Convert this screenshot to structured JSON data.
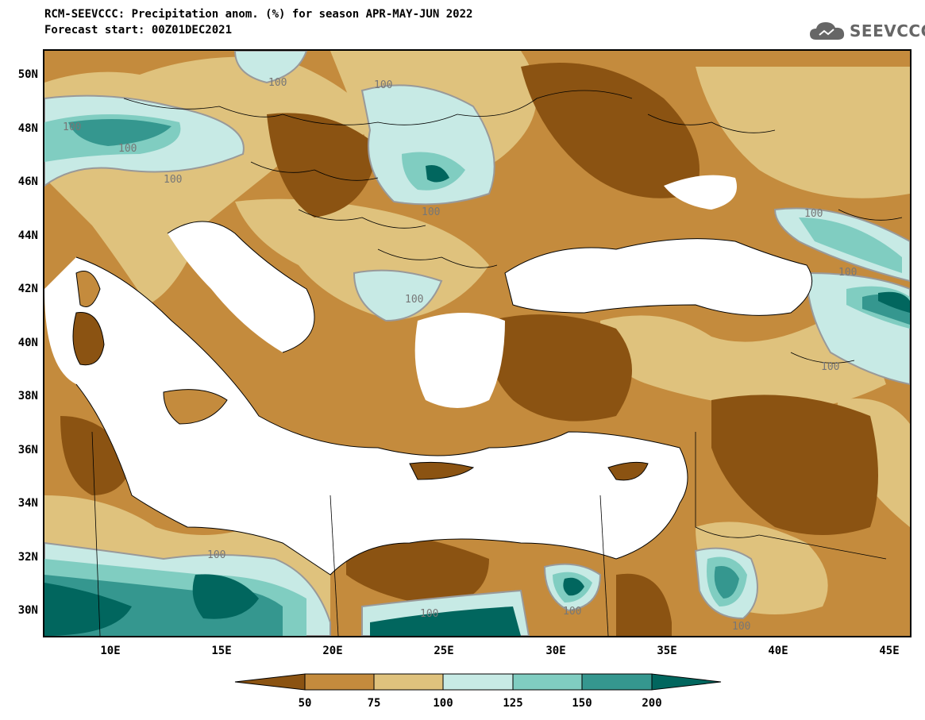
{
  "title": {
    "line1": "RCM-SEEVCCC: Precipitation anom. (%) for season APR-MAY-JUN 2022",
    "line2": "Forecast start: 00Z01DEC2021"
  },
  "logo": {
    "text": "SEEVCCC",
    "icon": "cloud-icon"
  },
  "lat_ticks": [
    "50N",
    "48N",
    "46N",
    "44N",
    "42N",
    "40N",
    "38N",
    "36N",
    "34N",
    "32N",
    "30N"
  ],
  "lon_ticks": [
    "10E",
    "15E",
    "20E",
    "25E",
    "30E",
    "35E",
    "40E",
    "45E"
  ],
  "contour_labels": [
    "100",
    "100",
    "100",
    "100",
    "100",
    "100",
    "100",
    "100",
    "100",
    "100",
    "100",
    "100",
    "100",
    "100"
  ],
  "colorbar": {
    "labels": [
      "50",
      "75",
      "100",
      "125",
      "150",
      "200"
    ],
    "colors": [
      "#8b5312",
      "#c48b3d",
      "#dfc27d",
      "#c7eae5",
      "#80cdc1",
      "#35978f",
      "#01665e"
    ]
  },
  "map": {
    "land_low": "#c48b3d",
    "dry": "#8b5312",
    "near_normal": "#dfc27d",
    "wet_light": "#c7eae5",
    "wet_mid": "#80cdc1",
    "wet_high": "#35978f",
    "wet_max": "#01665e",
    "sea": "#ffffff"
  }
}
